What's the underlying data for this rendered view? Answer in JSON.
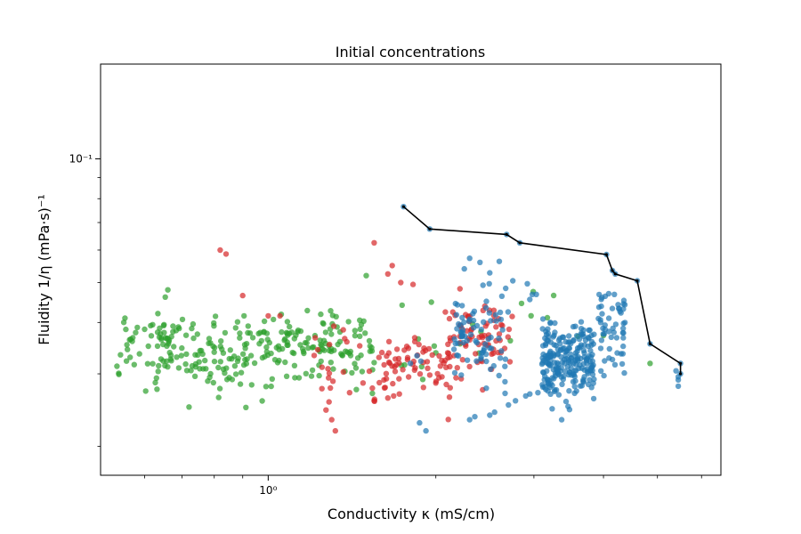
{
  "chart_data": {
    "type": "scatter",
    "title": "Initial concentrations",
    "xlabel": "Conductivity  κ (mS/cm)",
    "ylabel": "Fluidity  1/η (mPa·s)⁻¹",
    "xscale": "log",
    "yscale": "log",
    "xlim": [
      0.5,
      6.5
    ],
    "ylim": [
      0.017,
      0.17
    ],
    "x_major_ticks": [
      {
        "value": 1,
        "label": "10⁰"
      }
    ],
    "y_major_ticks": [
      {
        "value": 0.1,
        "label": "10⁻¹"
      }
    ],
    "x_minor_ticks": [
      0.6,
      0.7,
      0.8,
      0.9,
      2,
      3,
      4,
      5,
      6
    ],
    "y_minor_ticks": [
      0.02,
      0.03,
      0.04,
      0.05,
      0.06,
      0.07,
      0.08,
      0.09
    ],
    "grid": false,
    "legend": "none",
    "series": [
      {
        "color": "#2ca02c",
        "opacity": 0.7,
        "clusters": [
          {
            "count": 260,
            "seed": 11,
            "x_range": [
              0.62,
              1.55
            ],
            "y_center": 0.0345,
            "y_spread": 0.0038
          },
          {
            "count": 18,
            "seed": 12,
            "x_range": [
              0.53,
              0.62
            ],
            "y_center": 0.0345,
            "y_spread": 0.004
          },
          {
            "count": 18,
            "seed": 13,
            "x_range": [
              1.55,
              3.3
            ],
            "y_center": 0.0375,
            "y_spread": 0.0045
          }
        ],
        "points": [
          [
            0.535,
            0.0313
          ],
          [
            0.578,
            0.0378
          ],
          [
            0.582,
            0.0389
          ],
          [
            0.57,
            0.036
          ],
          [
            0.565,
            0.0329
          ],
          [
            0.6,
            0.0385
          ],
          [
            0.62,
            0.0395
          ],
          [
            0.615,
            0.0393
          ],
          [
            0.63,
            0.0293
          ],
          [
            0.65,
            0.0395
          ],
          [
            0.66,
            0.0312
          ],
          [
            0.905,
            0.0415
          ],
          [
            1.5,
            0.052
          ],
          [
            1.46,
            0.0405
          ],
          [
            1.47,
            0.0395
          ],
          [
            2.85,
            0.0445
          ],
          [
            4.0,
            0.0372
          ],
          [
            3.6,
            0.037
          ],
          [
            4.85,
            0.0318
          ],
          [
            0.69,
            0.039
          ]
        ]
      },
      {
        "color": "#d62728",
        "opacity": 0.7,
        "clusters": [
          {
            "count": 75,
            "seed": 21,
            "x_range": [
              2.08,
              2.75
            ],
            "y_center": 0.0362,
            "y_spread": 0.0042
          },
          {
            "count": 65,
            "seed": 22,
            "x_range": [
              1.58,
              2.15
            ],
            "y_center": 0.0318,
            "y_spread": 0.0022
          },
          {
            "count": 22,
            "seed": 23,
            "x_range": [
              1.2,
              1.58
            ],
            "y_center": 0.0345,
            "y_spread": 0.004
          }
        ],
        "points": [
          [
            1.0,
            0.0415
          ],
          [
            1.05,
            0.0415
          ],
          [
            0.9,
            0.0465
          ],
          [
            1.55,
            0.0625
          ],
          [
            1.67,
            0.055
          ],
          [
            1.64,
            0.0525
          ],
          [
            1.73,
            0.05
          ],
          [
            1.82,
            0.0495
          ],
          [
            0.82,
            0.06
          ],
          [
            0.84,
            0.0587
          ],
          [
            1.3,
            0.0232
          ],
          [
            1.32,
            0.0218
          ],
          [
            1.27,
            0.0245
          ],
          [
            1.55,
            0.0258
          ],
          [
            1.64,
            0.0262
          ],
          [
            1.68,
            0.0265
          ],
          [
            1.72,
            0.0268
          ],
          [
            1.9,
            0.0278
          ],
          [
            2.0,
            0.0285
          ],
          [
            1.48,
            0.0285
          ],
          [
            1.4,
            0.027
          ],
          [
            2.6,
            0.0375
          ],
          [
            2.62,
            0.0395
          ]
        ]
      },
      {
        "color": "#1f77b4",
        "opacity": 0.7,
        "clusters": [
          {
            "count": 230,
            "seed": 31,
            "x_range": [
              3.1,
              3.85
            ],
            "y_center": 0.0325,
            "y_spread": 0.0035
          },
          {
            "count": 80,
            "seed": 32,
            "x_range": [
              2.15,
              2.7
            ],
            "y_center": 0.0375,
            "y_spread": 0.006
          },
          {
            "count": 50,
            "seed": 33,
            "x_range": [
              3.9,
              4.4
            ],
            "y_center": 0.0385,
            "y_spread": 0.0045
          }
        ],
        "points": [
          [
            1.75,
            0.0765
          ],
          [
            1.95,
            0.0675
          ],
          [
            2.68,
            0.0655
          ],
          [
            2.83,
            0.0625
          ],
          [
            4.05,
            0.0585
          ],
          [
            4.15,
            0.0535
          ],
          [
            4.2,
            0.0525
          ],
          [
            4.6,
            0.0505
          ],
          [
            4.85,
            0.0355
          ],
          [
            5.5,
            0.0318
          ],
          [
            5.5,
            0.03
          ],
          [
            5.45,
            0.029
          ],
          [
            5.45,
            0.028
          ],
          [
            5.4,
            0.0305
          ],
          [
            5.45,
            0.0295
          ],
          [
            2.25,
            0.054
          ],
          [
            2.3,
            0.0573
          ],
          [
            2.4,
            0.056
          ],
          [
            2.5,
            0.0528
          ],
          [
            2.6,
            0.0563
          ],
          [
            2.75,
            0.0505
          ],
          [
            2.92,
            0.0497
          ],
          [
            2.98,
            0.0468
          ],
          [
            2.95,
            0.0455
          ],
          [
            3.03,
            0.0468
          ],
          [
            2.5,
            0.0238
          ],
          [
            2.55,
            0.0242
          ],
          [
            2.7,
            0.0252
          ],
          [
            2.78,
            0.0258
          ],
          [
            2.9,
            0.0265
          ],
          [
            2.95,
            0.0268
          ],
          [
            3.05,
            0.027
          ],
          [
            3.15,
            0.0275
          ],
          [
            2.3,
            0.0232
          ],
          [
            2.35,
            0.0236
          ],
          [
            1.87,
            0.0228
          ],
          [
            1.92,
            0.0218
          ],
          [
            1.8,
            0.0318
          ],
          [
            1.85,
            0.0332
          ],
          [
            1.88,
            0.0322
          ],
          [
            4.1,
            0.0345
          ],
          [
            4.15,
            0.0325
          ],
          [
            4.25,
            0.0442
          ],
          [
            4.27,
            0.0432
          ],
          [
            4.3,
            0.0422
          ]
        ]
      }
    ],
    "line": {
      "color": "#000000",
      "points": [
        [
          1.75,
          0.0765
        ],
        [
          1.95,
          0.0675
        ],
        [
          2.68,
          0.0655
        ],
        [
          2.83,
          0.0625
        ],
        [
          4.05,
          0.0585
        ],
        [
          4.15,
          0.0535
        ],
        [
          4.2,
          0.0525
        ],
        [
          4.6,
          0.0505
        ],
        [
          4.85,
          0.0355
        ],
        [
          5.5,
          0.0318
        ],
        [
          5.5,
          0.03
        ]
      ]
    }
  }
}
